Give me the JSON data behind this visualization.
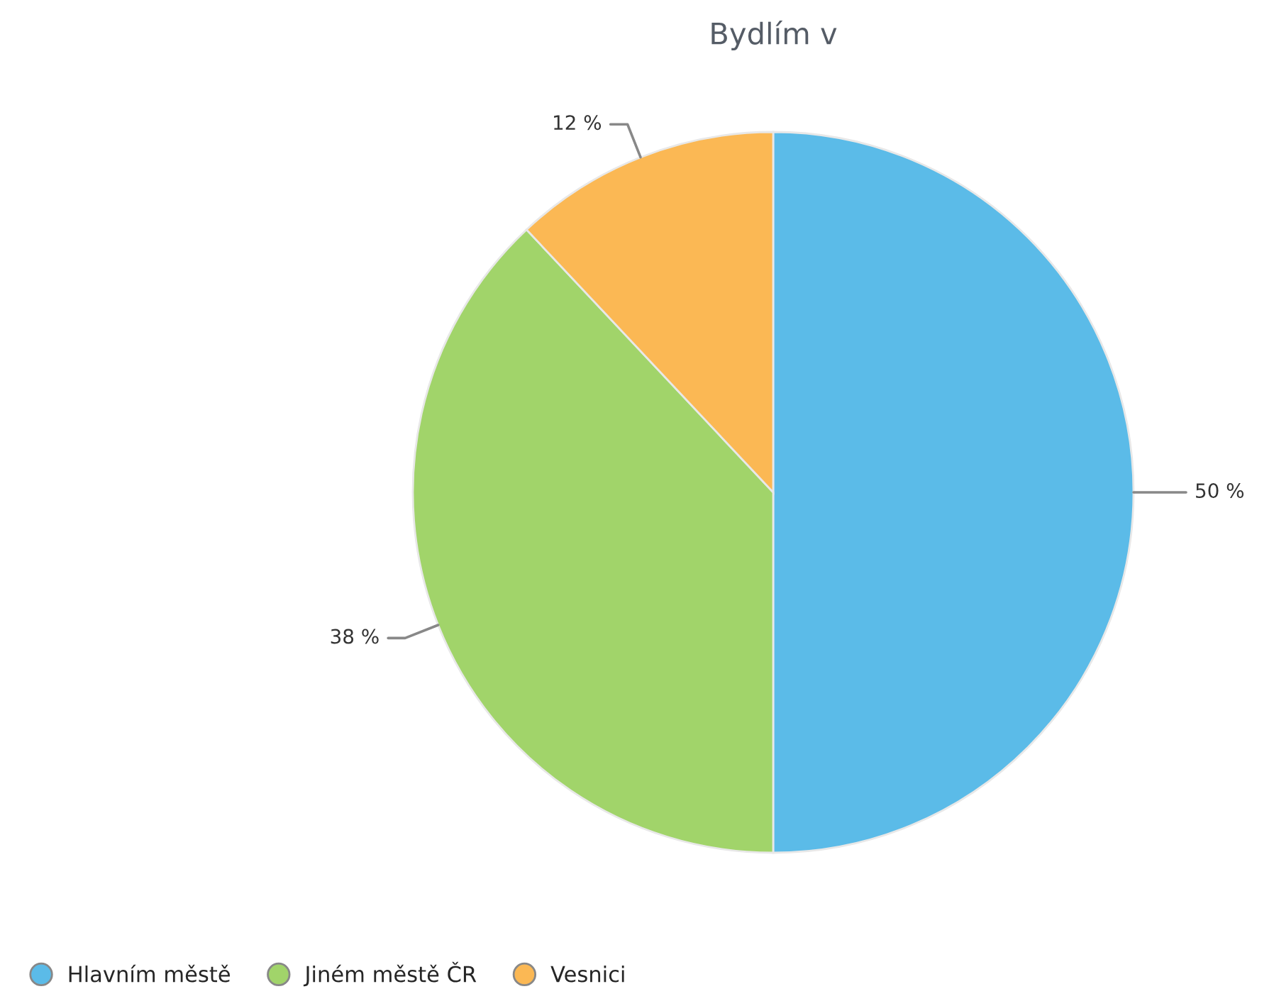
{
  "chart_data": {
    "type": "pie",
    "title": "Bydlím v",
    "categories": [
      "Hlavním městě",
      "Jiném městě ČR",
      "Vesnici"
    ],
    "values": [
      50,
      38,
      12
    ],
    "colors": [
      "#5bbbe8",
      "#a1d46a",
      "#fbb854"
    ],
    "value_labels": [
      "50 %",
      "38 %",
      "12 %"
    ],
    "legend": "bottom left"
  }
}
